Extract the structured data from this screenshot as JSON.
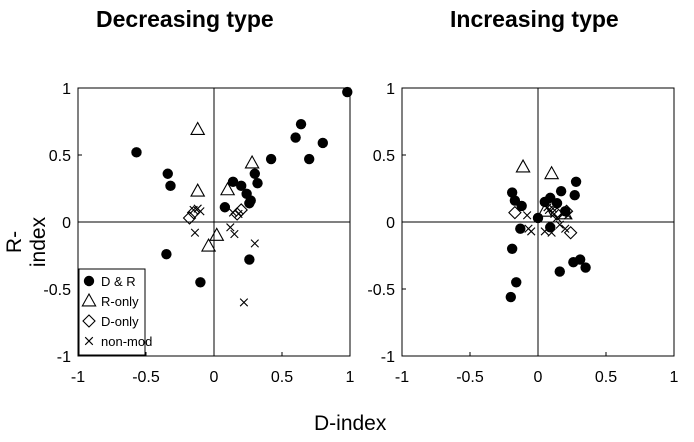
{
  "chart_data": [
    {
      "type": "scatter",
      "title": "Decreasing type",
      "xlabel": "D-index",
      "ylabel": "R-index",
      "xlim": [
        -1,
        1
      ],
      "ylim": [
        -1,
        1
      ],
      "xticks": [
        "-1",
        "-0.5",
        "0",
        "0.5",
        "1"
      ],
      "yticks": [
        "1",
        "0.5",
        "0",
        "-0.5",
        "-1"
      ],
      "legend": {
        "placement": "bottom-left",
        "entries": [
          {
            "label": "D & R",
            "marker": "filled-circle"
          },
          {
            "label": "R-only",
            "marker": "open-triangle"
          },
          {
            "label": "D-only",
            "marker": "open-diamond"
          },
          {
            "label": "non-mod",
            "marker": "cross"
          }
        ]
      },
      "series": [
        {
          "name": "D & R",
          "marker": "filled-circle",
          "points": [
            [
              -0.57,
              0.52
            ],
            [
              -0.34,
              0.36
            ],
            [
              -0.32,
              0.27
            ],
            [
              -0.35,
              -0.24
            ],
            [
              -0.1,
              -0.45
            ],
            [
              0.08,
              0.11
            ],
            [
              0.14,
              0.3
            ],
            [
              0.2,
              0.27
            ],
            [
              0.24,
              0.21
            ],
            [
              0.26,
              0.14
            ],
            [
              0.27,
              0.16
            ],
            [
              0.3,
              0.36
            ],
            [
              0.32,
              0.29
            ],
            [
              0.42,
              0.47
            ],
            [
              0.6,
              0.63
            ],
            [
              0.64,
              0.73
            ],
            [
              0.7,
              0.47
            ],
            [
              0.8,
              0.59
            ],
            [
              0.98,
              0.97
            ],
            [
              0.26,
              -0.28
            ]
          ]
        },
        {
          "name": "R-only",
          "marker": "open-triangle",
          "points": [
            [
              -0.12,
              0.69
            ],
            [
              -0.12,
              0.23
            ],
            [
              0.1,
              0.24
            ],
            [
              0.28,
              0.44
            ],
            [
              0.02,
              -0.1
            ],
            [
              -0.04,
              -0.18
            ]
          ]
        },
        {
          "name": "D-only",
          "marker": "open-diamond",
          "points": [
            [
              -0.18,
              0.03
            ],
            [
              -0.15,
              0.07
            ],
            [
              0.17,
              0.06
            ],
            [
              0.2,
              0.09
            ]
          ]
        },
        {
          "name": "non-mod",
          "marker": "cross",
          "points": [
            [
              -0.15,
              0.09
            ],
            [
              -0.12,
              0.1
            ],
            [
              -0.1,
              0.08
            ],
            [
              -0.14,
              -0.08
            ],
            [
              0.14,
              0.07
            ],
            [
              0.18,
              0.06
            ],
            [
              0.12,
              -0.04
            ],
            [
              0.15,
              -0.09
            ],
            [
              0.3,
              -0.16
            ],
            [
              0.22,
              -0.6
            ]
          ]
        }
      ]
    },
    {
      "type": "scatter",
      "title": "Increasing type",
      "xlabel": "D-index",
      "ylabel": "R-index",
      "xlim": [
        -1,
        1
      ],
      "ylim": [
        -1,
        1
      ],
      "xticks": [
        "-1",
        "-0.5",
        "0",
        "0.5",
        "1"
      ],
      "yticks": [
        "1",
        "0.5",
        "0",
        "-0.5",
        "-1"
      ],
      "series": [
        {
          "name": "D & R",
          "marker": "filled-circle",
          "points": [
            [
              -0.19,
              0.22
            ],
            [
              -0.19,
              -0.2
            ],
            [
              -0.2,
              -0.56
            ],
            [
              -0.16,
              -0.45
            ],
            [
              -0.12,
              0.12
            ],
            [
              -0.17,
              0.16
            ],
            [
              -0.13,
              -0.05
            ],
            [
              0.0,
              0.03
            ],
            [
              0.05,
              0.15
            ],
            [
              0.09,
              0.18
            ],
            [
              0.09,
              -0.04
            ],
            [
              0.14,
              0.14
            ],
            [
              0.17,
              0.23
            ],
            [
              0.2,
              0.08
            ],
            [
              0.16,
              -0.37
            ],
            [
              0.27,
              0.2
            ],
            [
              0.28,
              0.3
            ],
            [
              0.26,
              -0.3
            ],
            [
              0.31,
              -0.28
            ],
            [
              0.35,
              -0.34
            ]
          ]
        },
        {
          "name": "R-only",
          "marker": "open-triangle",
          "points": [
            [
              -0.11,
              0.41
            ],
            [
              0.1,
              0.36
            ],
            [
              0.05,
              0.08
            ],
            [
              0.2,
              0.06
            ]
          ]
        },
        {
          "name": "D-only",
          "marker": "open-diamond",
          "points": [
            [
              -0.17,
              0.07
            ],
            [
              0.14,
              0.06
            ],
            [
              0.21,
              0.08
            ],
            [
              0.24,
              -0.08
            ]
          ]
        },
        {
          "name": "non-mod",
          "marker": "cross",
          "points": [
            [
              -0.08,
              0.05
            ],
            [
              -0.07,
              -0.05
            ],
            [
              -0.05,
              -0.07
            ],
            [
              0.08,
              0.09
            ],
            [
              0.11,
              0.1
            ],
            [
              0.12,
              0.06
            ],
            [
              0.14,
              0.03
            ],
            [
              0.16,
              -0.02
            ],
            [
              0.2,
              -0.05
            ],
            [
              0.05,
              -0.07
            ],
            [
              0.1,
              -0.08
            ],
            [
              0.07,
              0.11
            ],
            [
              0.22,
              0.05
            ]
          ]
        }
      ]
    }
  ]
}
